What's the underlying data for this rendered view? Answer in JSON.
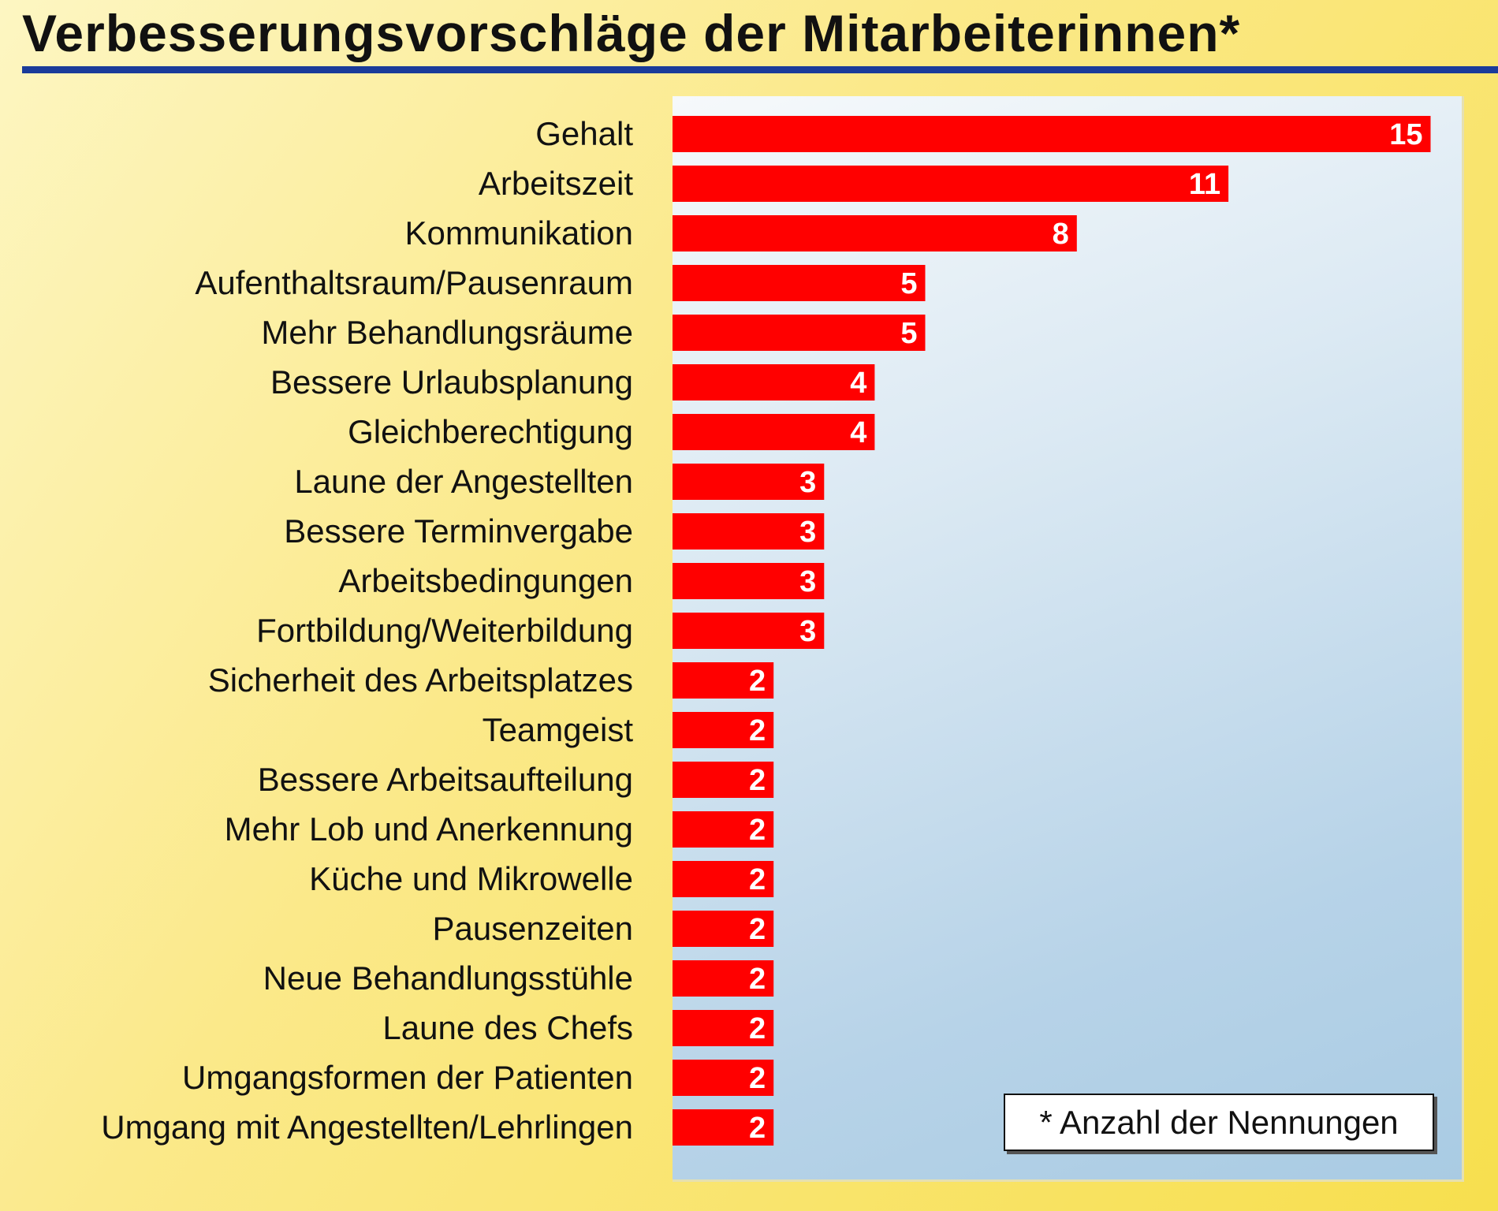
{
  "chart_data": {
    "type": "bar",
    "orientation": "horizontal",
    "title": "Verbesserungsvorschläge der Mitarbeiterinnen*",
    "footnote": "* Anzahl der Nennungen",
    "categories": [
      "Gehalt",
      "Arbeitszeit",
      "Kommunikation",
      "Aufenthaltsraum/Pausenraum",
      "Mehr Behandlungsräume",
      "Bessere Urlaubsplanung",
      "Gleichberechtigung",
      "Laune der Angestellten",
      "Bessere Terminvergabe",
      "Arbeitsbedingungen",
      "Fortbildung/Weiterbildung",
      "Sicherheit des Arbeitsplatzes",
      "Teamgeist",
      "Bessere Arbeitsaufteilung",
      "Mehr Lob und Anerkennung",
      "Küche und Mikrowelle",
      "Pausenzeiten",
      "Neue Behandlungsstühle",
      "Laune des Chefs",
      "Umgangsformen der Patienten",
      "Umgang mit Angestellten/Lehrlingen"
    ],
    "values": [
      15,
      11,
      8,
      5,
      5,
      4,
      4,
      3,
      3,
      3,
      3,
      2,
      2,
      2,
      2,
      2,
      2,
      2,
      2,
      2,
      2
    ],
    "xlim": [
      0,
      15.5
    ],
    "grid": false,
    "legend": "none",
    "data_labels": true,
    "colors": {
      "bar": "#ff0000",
      "value_label": "#ffffff",
      "title_rule": "#1a3b9a"
    }
  }
}
